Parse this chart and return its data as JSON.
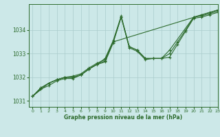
{
  "title": "Graphe pression niveau de la mer (hPa)",
  "bg_color": "#cce8e8",
  "grid_color": "#aacccc",
  "line_color": "#2d6b2d",
  "xlim": [
    -0.5,
    23
  ],
  "ylim": [
    1030.75,
    1035.1
  ],
  "yticks": [
    1031,
    1032,
    1033,
    1034
  ],
  "xticks": [
    0,
    1,
    2,
    3,
    4,
    5,
    6,
    7,
    8,
    9,
    10,
    11,
    12,
    13,
    14,
    15,
    16,
    17,
    18,
    19,
    20,
    21,
    22,
    23
  ],
  "series": [
    {
      "x": [
        0,
        1,
        2,
        3,
        4,
        5,
        6,
        7,
        8,
        9,
        10,
        11,
        12,
        13,
        14,
        15,
        16,
        17,
        18,
        19,
        20,
        21,
        22,
        23
      ],
      "y": [
        1031.2,
        1031.55,
        1031.75,
        1031.9,
        1032.0,
        1032.0,
        1032.1,
        1032.35,
        1032.55,
        1032.65,
        1033.45,
        1034.55,
        1033.25,
        1033.1,
        1032.75,
        1032.8,
        1032.8,
        1032.85,
        1033.4,
        1033.95,
        1034.5,
        1034.55,
        1034.65,
        1034.75
      ]
    },
    {
      "x": [
        0,
        1,
        2,
        3,
        4,
        5,
        6,
        7,
        8,
        9,
        10,
        11,
        12,
        13,
        14,
        15,
        16,
        17,
        18,
        19,
        20,
        21,
        22,
        23
      ],
      "y": [
        1031.2,
        1031.55,
        1031.75,
        1031.9,
        1032.0,
        1032.05,
        1032.15,
        1032.4,
        1032.6,
        1032.75,
        1033.5,
        1034.55,
        1033.3,
        1033.15,
        1032.8,
        1032.8,
        1032.8,
        1033.0,
        1033.5,
        1034.0,
        1034.55,
        1034.6,
        1034.7,
        1034.8
      ]
    },
    {
      "x": [
        0,
        2,
        3,
        4,
        5,
        6,
        7,
        8,
        9,
        10,
        11,
        12,
        13,
        14,
        15,
        16,
        17,
        20,
        21,
        22,
        23
      ],
      "y": [
        1031.2,
        1031.75,
        1031.9,
        1032.0,
        1032.0,
        1032.1,
        1032.35,
        1032.55,
        1032.8,
        1033.55,
        1034.6,
        1033.3,
        1033.15,
        1032.8,
        1032.8,
        1032.8,
        1033.15,
        1034.55,
        1034.65,
        1034.75,
        1034.85
      ]
    },
    {
      "x": [
        0,
        1,
        2,
        3,
        4,
        5,
        6,
        7,
        8,
        9,
        10,
        23
      ],
      "y": [
        1031.2,
        1031.5,
        1031.65,
        1031.85,
        1031.95,
        1031.95,
        1032.1,
        1032.35,
        1032.55,
        1032.7,
        1033.5,
        1034.85
      ]
    }
  ]
}
